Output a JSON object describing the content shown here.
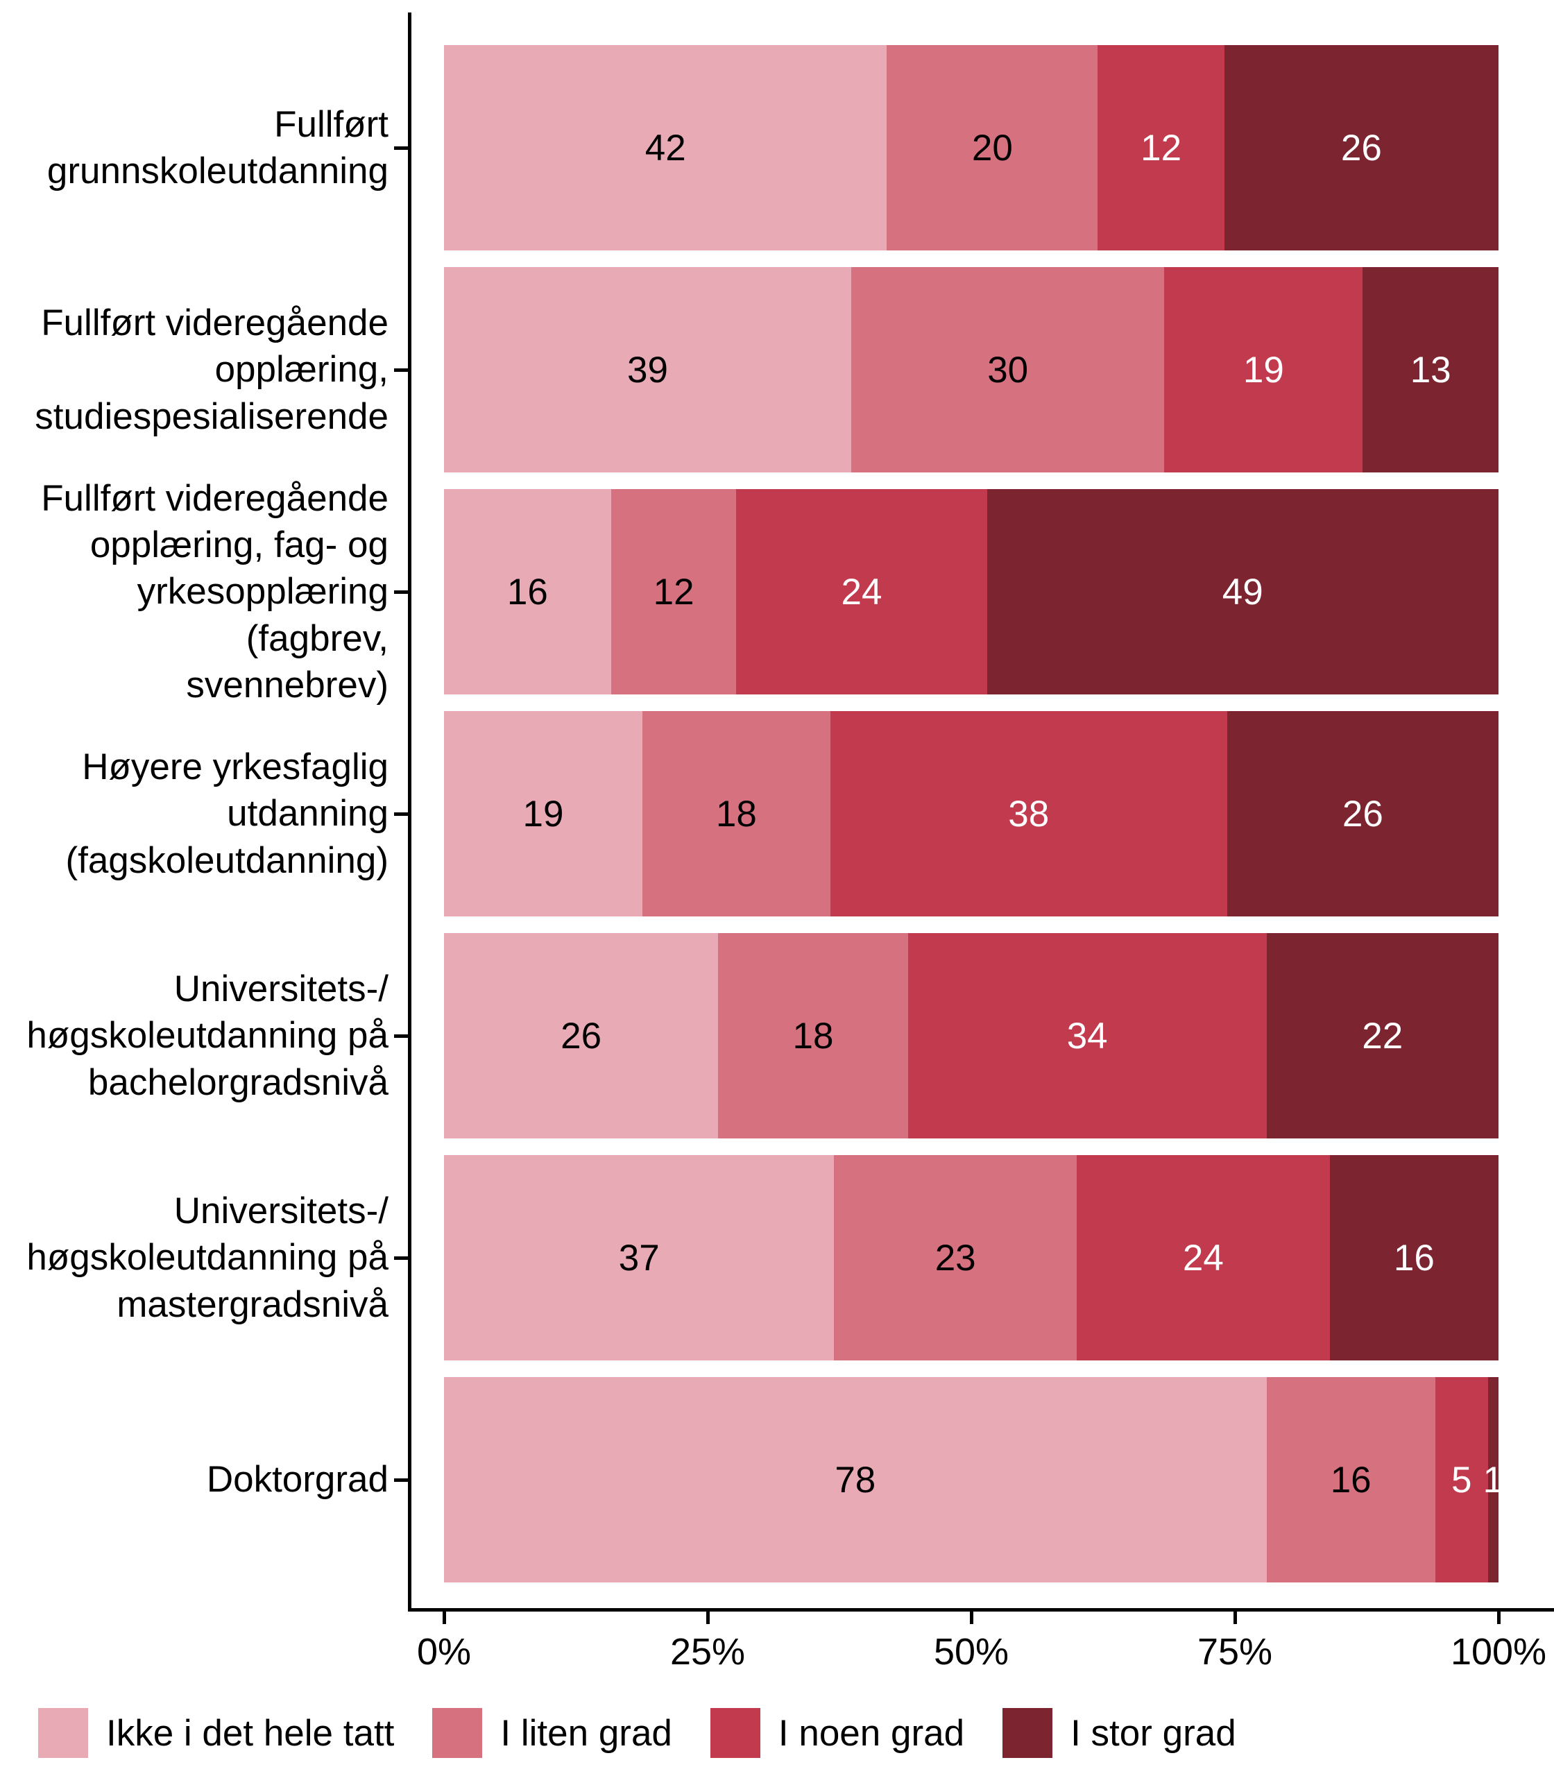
{
  "page": {
    "background": "#ffffff",
    "text_color": "#000000"
  },
  "chart_data": {
    "type": "bar",
    "orientation": "horizontal",
    "mode": "stacked-percent",
    "title": "",
    "xlabel": "",
    "ylabel": "",
    "grid": false,
    "axis_color": "#000000",
    "x_range": [
      0,
      100
    ],
    "x_ticks": [
      "0%",
      "25%",
      "50%",
      "75%",
      "100%"
    ],
    "x_tick_values": [
      0,
      25,
      50,
      75,
      100
    ],
    "legend_position": "bottom-left",
    "categories": [
      [
        "Fullført",
        "grunnskoleutdanning"
      ],
      [
        "Fullført videregående",
        "opplæring,",
        "studiespesialiserende"
      ],
      [
        "Fullført videregående",
        "opplæring, fag- og",
        "yrkesopplæring (fagbrev,",
        "svennebrev)"
      ],
      [
        "Høyere yrkesfaglig",
        "utdanning",
        "(fagskoleutdanning)"
      ],
      [
        "Universitets-/",
        "høgskoleutdanning på",
        "bachelorgradsnivå"
      ],
      [
        "Universitets-/",
        "høgskoleutdanning på",
        "mastergradsnivå"
      ],
      [
        "Doktorgrad"
      ]
    ],
    "series": [
      {
        "name": "Ikke i det hele tatt",
        "color": "#e8abb5",
        "label_color": "#000000",
        "values": [
          42,
          39,
          16,
          19,
          26,
          37,
          78
        ]
      },
      {
        "name": "I liten grad",
        "color": "#d6717f",
        "label_color": "#000000",
        "values": [
          20,
          30,
          12,
          18,
          18,
          23,
          16
        ]
      },
      {
        "name": "I noen grad",
        "color": "#c23a4e",
        "label_color": "#ffffff",
        "values": [
          12,
          19,
          24,
          38,
          34,
          24,
          5
        ]
      },
      {
        "name": "I stor grad",
        "color": "#7c2530",
        "label_color": "#ffffff",
        "values": [
          26,
          13,
          49,
          26,
          22,
          16,
          1
        ]
      }
    ]
  }
}
